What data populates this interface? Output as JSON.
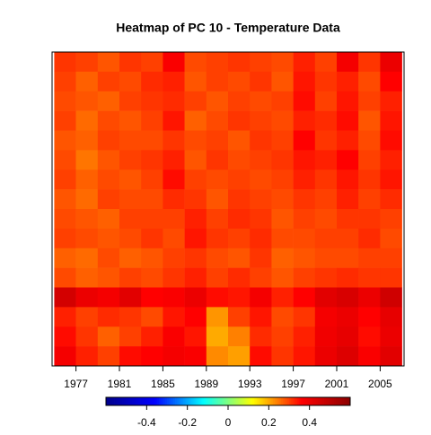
{
  "chart_data": {
    "type": "heatmap",
    "title": "Heatmap of PC 10  - Temperature Data",
    "x": [
      1976,
      1978,
      1980,
      1982,
      1984,
      1986,
      1988,
      1990,
      1992,
      1994,
      1996,
      1998,
      2000,
      2002,
      2004,
      2006
    ],
    "xlim": [
      1974.8,
      2007.2
    ],
    "xticks": [
      1977,
      1981,
      1985,
      1989,
      1993,
      1997,
      2001,
      2005
    ],
    "z": [
      [
        0.31,
        0.3,
        0.28,
        0.31,
        0.3,
        0.37,
        0.29,
        0.3,
        0.31,
        0.3,
        0.29,
        0.33,
        0.3,
        0.38,
        0.31,
        0.4
      ],
      [
        0.3,
        0.27,
        0.3,
        0.29,
        0.32,
        0.33,
        0.28,
        0.3,
        0.29,
        0.31,
        0.28,
        0.34,
        0.31,
        0.33,
        0.29,
        0.36
      ],
      [
        0.29,
        0.28,
        0.27,
        0.3,
        0.31,
        0.32,
        0.3,
        0.28,
        0.3,
        0.29,
        0.3,
        0.35,
        0.3,
        0.34,
        0.3,
        0.33
      ],
      [
        0.3,
        0.26,
        0.29,
        0.28,
        0.3,
        0.34,
        0.27,
        0.29,
        0.31,
        0.3,
        0.29,
        0.33,
        0.32,
        0.35,
        0.28,
        0.34
      ],
      [
        0.28,
        0.27,
        0.3,
        0.29,
        0.29,
        0.31,
        0.29,
        0.3,
        0.28,
        0.31,
        0.3,
        0.36,
        0.31,
        0.33,
        0.29,
        0.35
      ],
      [
        0.29,
        0.25,
        0.28,
        0.3,
        0.31,
        0.33,
        0.28,
        0.31,
        0.29,
        0.3,
        0.31,
        0.34,
        0.33,
        0.36,
        0.3,
        0.33
      ],
      [
        0.3,
        0.27,
        0.29,
        0.28,
        0.3,
        0.35,
        0.3,
        0.29,
        0.3,
        0.29,
        0.3,
        0.33,
        0.31,
        0.34,
        0.31,
        0.34
      ],
      [
        0.28,
        0.26,
        0.3,
        0.29,
        0.29,
        0.32,
        0.31,
        0.28,
        0.31,
        0.3,
        0.29,
        0.31,
        0.3,
        0.33,
        0.3,
        0.32
      ],
      [
        0.29,
        0.28,
        0.27,
        0.3,
        0.3,
        0.3,
        0.33,
        0.3,
        0.32,
        0.31,
        0.28,
        0.3,
        0.29,
        0.31,
        0.31,
        0.3
      ],
      [
        0.3,
        0.29,
        0.28,
        0.29,
        0.31,
        0.29,
        0.34,
        0.31,
        0.3,
        0.32,
        0.29,
        0.29,
        0.3,
        0.3,
        0.32,
        0.29
      ],
      [
        0.27,
        0.26,
        0.29,
        0.27,
        0.28,
        0.3,
        0.31,
        0.29,
        0.28,
        0.31,
        0.27,
        0.28,
        0.29,
        0.29,
        0.3,
        0.3
      ],
      [
        0.29,
        0.27,
        0.28,
        0.3,
        0.29,
        0.31,
        0.33,
        0.3,
        0.32,
        0.3,
        0.28,
        0.3,
        0.31,
        0.32,
        0.31,
        0.31
      ],
      [
        0.45,
        0.4,
        0.38,
        0.42,
        0.36,
        0.37,
        0.4,
        0.35,
        0.34,
        0.38,
        0.33,
        0.36,
        0.42,
        0.44,
        0.4,
        0.46
      ],
      [
        0.33,
        0.3,
        0.32,
        0.31,
        0.29,
        0.34,
        0.36,
        0.22,
        0.3,
        0.34,
        0.29,
        0.31,
        0.38,
        0.4,
        0.36,
        0.41
      ],
      [
        0.35,
        0.31,
        0.27,
        0.3,
        0.33,
        0.37,
        0.34,
        0.2,
        0.24,
        0.32,
        0.3,
        0.33,
        0.39,
        0.41,
        0.35,
        0.4
      ],
      [
        0.38,
        0.33,
        0.3,
        0.35,
        0.36,
        0.38,
        0.37,
        0.23,
        0.21,
        0.35,
        0.31,
        0.34,
        0.4,
        0.43,
        0.37,
        0.42
      ]
    ],
    "zlim": [
      -0.6,
      0.6
    ],
    "colors": [
      "#00008b",
      "#0000ff",
      "#00ffff",
      "#ffff00",
      "#ff0000",
      "#8b0000"
    ],
    "colorbar_ticks": [
      -0.4,
      -0.2,
      0.0,
      0.2,
      0.4
    ]
  }
}
